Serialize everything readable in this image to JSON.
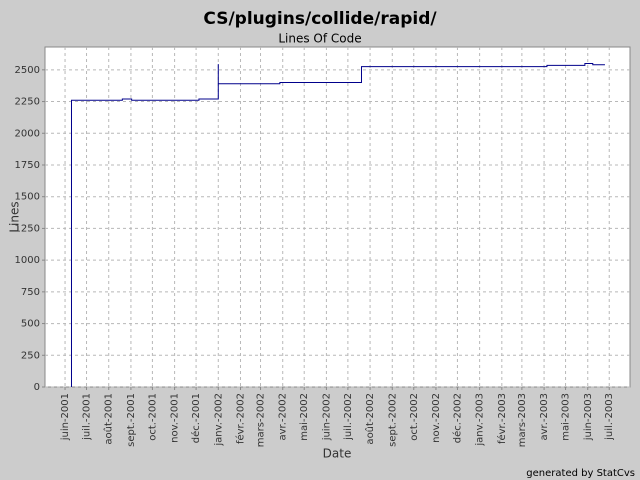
{
  "chart_data": {
    "type": "line",
    "title": "CS/plugins/collide/rapid/",
    "subtitle": "Lines Of Code",
    "x_label": "Date",
    "y_label": "Lines",
    "footer": "generated by StatCvs",
    "grid": true,
    "x": [
      "2001-06-10",
      "2001-06-10",
      "2001-08-20",
      "2001-08-20",
      "2001-09-02",
      "2001-09-02",
      "2001-12-05",
      "2001-12-05",
      "2002-01-01",
      "2002-01-01",
      "2002-01-01",
      "2002-03-28",
      "2002-03-28",
      "2002-07-20",
      "2002-07-20",
      "2003-04-05",
      "2003-04-05",
      "2003-05-28",
      "2003-05-28",
      "2003-06-08",
      "2003-06-08",
      "2003-06-25"
    ],
    "series": [
      {
        "name": "Lines",
        "color": "#00008b",
        "values": [
          0,
          2260,
          2260,
          2270,
          2270,
          2260,
          2260,
          2270,
          2270,
          2545,
          2390,
          2390,
          2400,
          2400,
          2525,
          2525,
          2535,
          2535,
          2550,
          2550,
          2540,
          2540
        ]
      }
    ],
    "xlim": [
      "2001-05-04",
      "2003-07-30"
    ],
    "xticks": [
      {
        "value": "2001-06-01",
        "label": "juin-2001"
      },
      {
        "value": "2001-07-01",
        "label": "juil.-2001"
      },
      {
        "value": "2001-08-01",
        "label": "août-2001"
      },
      {
        "value": "2001-09-01",
        "label": "sept.-2001"
      },
      {
        "value": "2001-10-01",
        "label": "oct.-2001"
      },
      {
        "value": "2001-11-01",
        "label": "nov.-2001"
      },
      {
        "value": "2001-12-01",
        "label": "déc.-2001"
      },
      {
        "value": "2002-01-01",
        "label": "janv.-2002"
      },
      {
        "value": "2002-02-01",
        "label": "févr.-2002"
      },
      {
        "value": "2002-03-01",
        "label": "mars-2002"
      },
      {
        "value": "2002-04-01",
        "label": "avr.-2002"
      },
      {
        "value": "2002-05-01",
        "label": "mai-2002"
      },
      {
        "value": "2002-06-01",
        "label": "juin-2002"
      },
      {
        "value": "2002-07-01",
        "label": "juil.-2002"
      },
      {
        "value": "2002-08-01",
        "label": "août-2002"
      },
      {
        "value": "2002-09-01",
        "label": "sept.-2002"
      },
      {
        "value": "2002-10-01",
        "label": "oct.-2002"
      },
      {
        "value": "2002-11-01",
        "label": "nov.-2002"
      },
      {
        "value": "2002-12-01",
        "label": "déc.-2002"
      },
      {
        "value": "2003-01-01",
        "label": "janv.-2003"
      },
      {
        "value": "2003-02-01",
        "label": "févr.-2003"
      },
      {
        "value": "2003-03-01",
        "label": "mars-2003"
      },
      {
        "value": "2003-04-01",
        "label": "avr.-2003"
      },
      {
        "value": "2003-05-01",
        "label": "mai-2003"
      },
      {
        "value": "2003-06-01",
        "label": "juin-2003"
      },
      {
        "value": "2003-07-01",
        "label": "juil.-2003"
      }
    ],
    "ylim": [
      0,
      2680
    ],
    "yticks": [
      0,
      250,
      500,
      750,
      1000,
      1250,
      1500,
      1750,
      2000,
      2250,
      2500
    ]
  }
}
